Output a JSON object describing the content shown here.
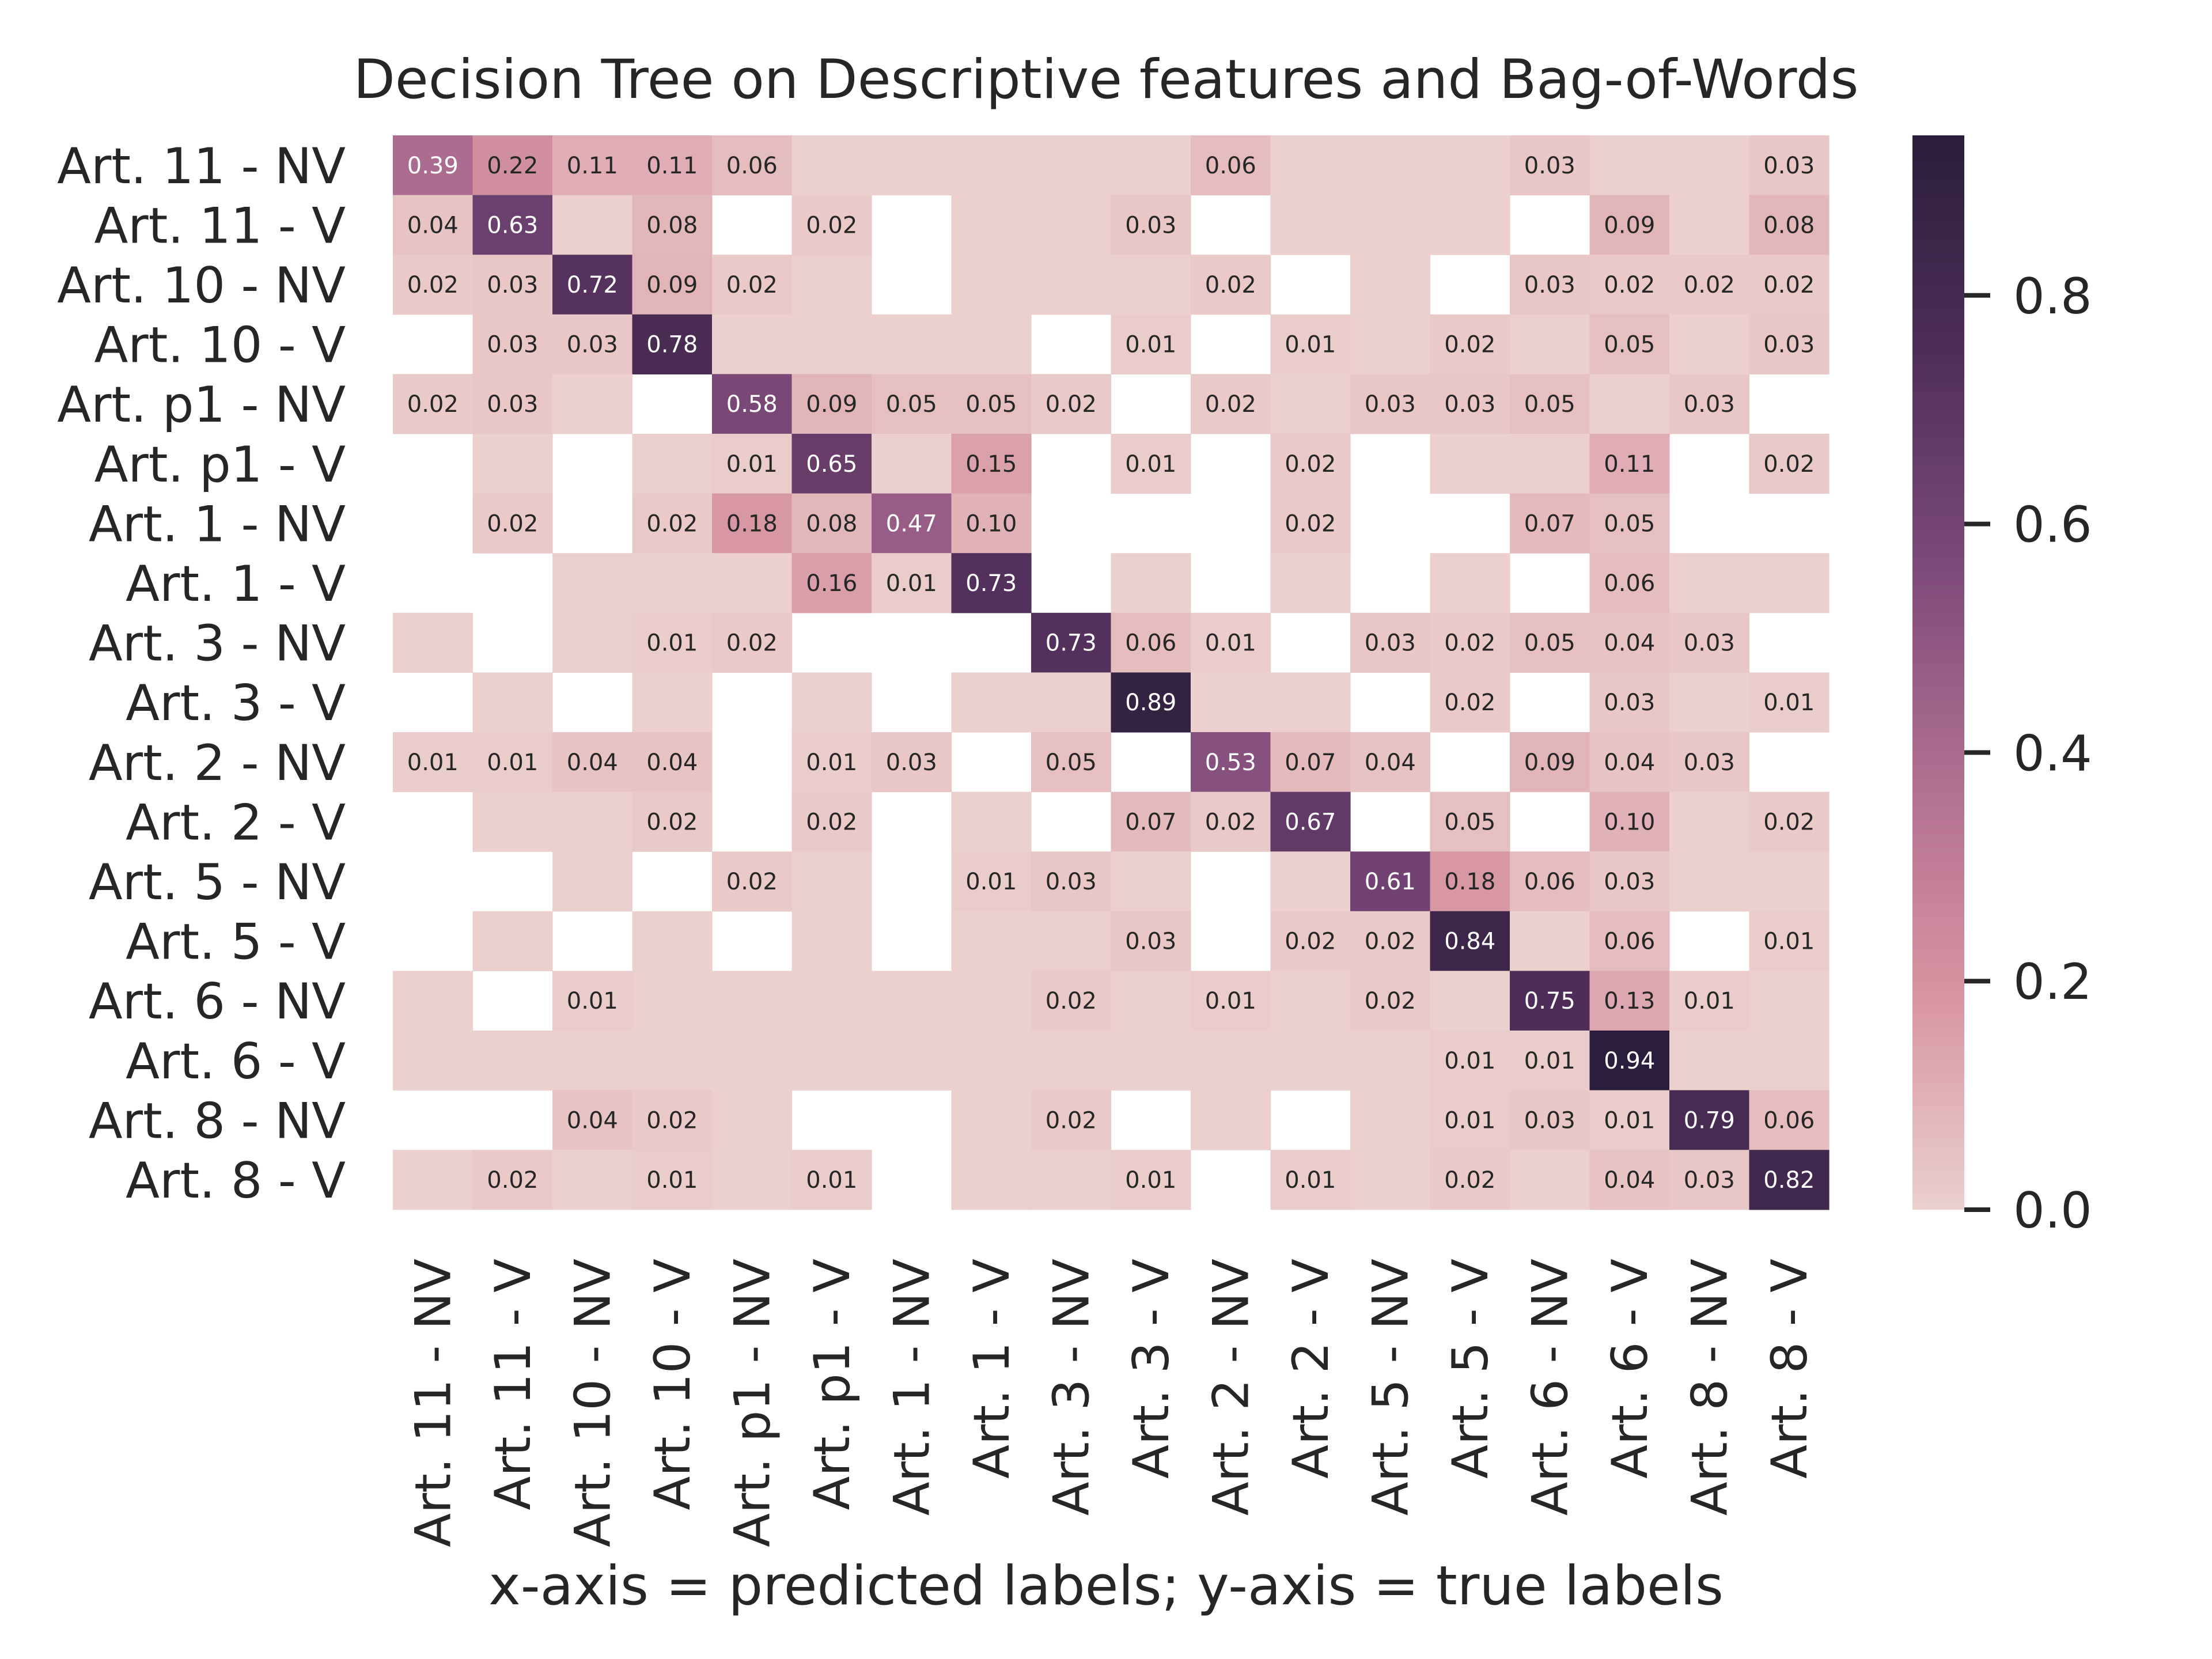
{
  "chart_data": {
    "type": "heatmap",
    "title": "Decision Tree on Descriptive features and Bag-of-Words",
    "xlabel": "x-axis = predicted labels; y-axis = true labels",
    "ylabel": "",
    "labels": [
      "Art. 11 - NV",
      "Art. 11 - V",
      "Art. 10 - NV",
      "Art. 10 - V",
      "Art. p1 - NV",
      "Art. p1 - V",
      "Art. 1 - NV",
      "Art. 1 - V",
      "Art. 3 - NV",
      "Art. 3 - V",
      "Art. 2 - NV",
      "Art. 2 - V",
      "Art. 5 - NV",
      "Art. 5 - V",
      "Art. 6 - NV",
      "Art. 6 - V",
      "Art. 8 - NV",
      "Art. 8 - V"
    ],
    "matrix": [
      [
        0.39,
        0.22,
        0.11,
        0.11,
        0.06,
        0,
        0,
        0,
        0,
        0,
        0.06,
        0,
        0,
        0,
        0.03,
        0,
        0,
        0.03
      ],
      [
        0.04,
        0.63,
        0,
        0.08,
        null,
        0.02,
        null,
        0,
        0,
        0.03,
        null,
        0,
        0,
        0,
        null,
        0.09,
        0,
        0.08
      ],
      [
        0.02,
        0.03,
        0.72,
        0.09,
        0.02,
        0,
        null,
        0,
        0,
        0,
        0.02,
        null,
        0,
        null,
        0.03,
        0.02,
        0.02,
        0.02
      ],
      [
        null,
        0.03,
        0.03,
        0.78,
        0,
        0,
        0,
        0,
        null,
        0.01,
        null,
        0.01,
        0,
        0.02,
        0,
        0.05,
        0,
        0.03
      ],
      [
        0.02,
        0.03,
        0,
        null,
        0.58,
        0.09,
        0.05,
        0.05,
        0.02,
        null,
        0.02,
        0,
        0.03,
        0.03,
        0.05,
        0,
        0.03,
        null
      ],
      [
        null,
        0,
        null,
        0,
        0.01,
        0.65,
        0,
        0.15,
        null,
        0.01,
        null,
        0.02,
        null,
        0,
        0,
        0.11,
        null,
        0.02
      ],
      [
        null,
        0.02,
        null,
        0.02,
        0.18,
        0.08,
        0.47,
        0.1,
        null,
        null,
        null,
        0.02,
        null,
        null,
        0.07,
        0.05,
        null,
        null
      ],
      [
        null,
        null,
        0,
        0,
        0,
        0.16,
        0.01,
        0.73,
        null,
        0,
        null,
        0,
        null,
        0,
        null,
        0.06,
        0,
        0
      ],
      [
        0,
        null,
        0,
        0.01,
        0.02,
        null,
        null,
        null,
        0.73,
        0.06,
        0.01,
        null,
        0.03,
        0.02,
        0.05,
        0.04,
        0.03,
        null
      ],
      [
        null,
        0,
        null,
        0,
        null,
        0,
        null,
        0,
        0,
        0.89,
        0,
        0,
        null,
        0.02,
        null,
        0.03,
        0,
        0.01
      ],
      [
        0.01,
        0.01,
        0.04,
        0.04,
        null,
        0.01,
        0.03,
        null,
        0.05,
        null,
        0.53,
        0.07,
        0.04,
        null,
        0.09,
        0.04,
        0.03,
        null
      ],
      [
        null,
        0,
        0,
        0.02,
        null,
        0.02,
        null,
        0,
        null,
        0.07,
        0.02,
        0.67,
        null,
        0.05,
        null,
        0.1,
        0,
        0.02
      ],
      [
        null,
        null,
        0,
        null,
        0.02,
        0,
        null,
        0.01,
        0.03,
        0,
        null,
        0,
        0.61,
        0.18,
        0.06,
        0.03,
        0,
        0
      ],
      [
        null,
        0,
        null,
        0,
        null,
        0,
        null,
        0,
        0,
        0.03,
        null,
        0.02,
        0.02,
        0.84,
        0,
        0.06,
        null,
        0.01
      ],
      [
        0,
        null,
        0.01,
        0,
        0,
        0,
        0,
        0,
        0.02,
        0,
        0.01,
        0,
        0.02,
        0,
        0.75,
        0.13,
        0.01,
        0
      ],
      [
        0,
        0,
        0,
        0,
        0,
        0,
        0,
        0,
        0,
        0,
        0,
        0,
        0,
        0.01,
        0.01,
        0.94,
        0,
        0
      ],
      [
        null,
        null,
        0.04,
        0.02,
        0,
        null,
        null,
        0,
        0.02,
        null,
        0,
        null,
        0,
        0.01,
        0.03,
        0.01,
        0.79,
        0.06
      ],
      [
        0,
        0.02,
        0,
        0.01,
        0,
        0.01,
        null,
        0,
        0,
        0.01,
        null,
        0.01,
        0,
        0.02,
        0,
        0.04,
        0.03,
        0.82
      ]
    ],
    "colorbar": {
      "min": 0.0,
      "max": 0.94,
      "ticks": [
        0.0,
        0.2,
        0.4,
        0.6,
        0.8
      ],
      "tick_labels": [
        "0.0",
        "0.2",
        "0.4",
        "0.6",
        "0.8"
      ]
    },
    "colormap": [
      "#ebd0cd",
      "#d795a1",
      "#b06f91",
      "#7d4a7a",
      "#4e2e58",
      "#2b1d3c"
    ],
    "grid": false,
    "legend": "colorbar-right"
  }
}
